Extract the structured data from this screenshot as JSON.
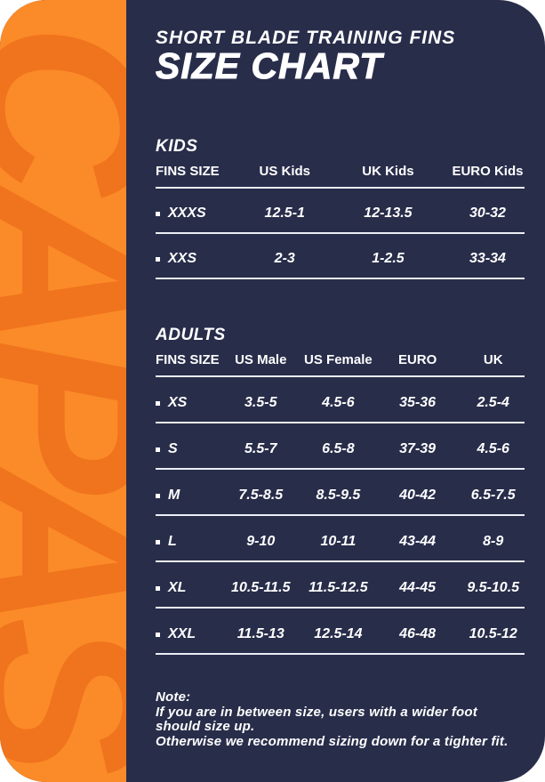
{
  "brand": {
    "name": "CAPAS"
  },
  "header": {
    "subtitle": "SHORT BLADE TRAINING FINS",
    "title": "SIZE CHART"
  },
  "kids": {
    "section_label": "KIDS",
    "columns": [
      "FINS SIZE",
      "US Kids",
      "UK Kids",
      "EURO Kids"
    ],
    "rows": [
      {
        "size": "XXXS",
        "values": [
          "12.5-1",
          "12-13.5",
          "30-32"
        ]
      },
      {
        "size": "XXS",
        "values": [
          "2-3",
          "1-2.5",
          "33-34"
        ]
      }
    ]
  },
  "adults": {
    "section_label": "ADULTS",
    "columns": [
      "FINS SIZE",
      "US Male",
      "US Female",
      "EURO",
      "UK"
    ],
    "rows": [
      {
        "size": "XS",
        "values": [
          "3.5-5",
          "4.5-6",
          "35-36",
          "2.5-4"
        ]
      },
      {
        "size": "S",
        "values": [
          "5.5-7",
          "6.5-8",
          "37-39",
          "4.5-6"
        ]
      },
      {
        "size": "M",
        "values": [
          "7.5-8.5",
          "8.5-9.5",
          "40-42",
          "6.5-7.5"
        ]
      },
      {
        "size": "L",
        "values": [
          "9-10",
          "10-11",
          "43-44",
          "8-9"
        ]
      },
      {
        "size": "XL",
        "values": [
          "10.5-11.5",
          "11.5-12.5",
          "44-45",
          "9.5-10.5"
        ]
      },
      {
        "size": "XXL",
        "values": [
          "11.5-13",
          "12.5-14",
          "46-48",
          "10.5-12"
        ]
      }
    ]
  },
  "note": {
    "label": "Note:",
    "lines": [
      "If you are in between size, users with a wider foot",
      "should size up.",
      "Otherwise we recommend sizing down for a tighter fit."
    ]
  },
  "colors": {
    "card_background": "#282d4a",
    "strip_background": "#fb8a28",
    "brand_letters": "#f0731d",
    "text": "#ffffff",
    "divider": "#eceef6"
  }
}
